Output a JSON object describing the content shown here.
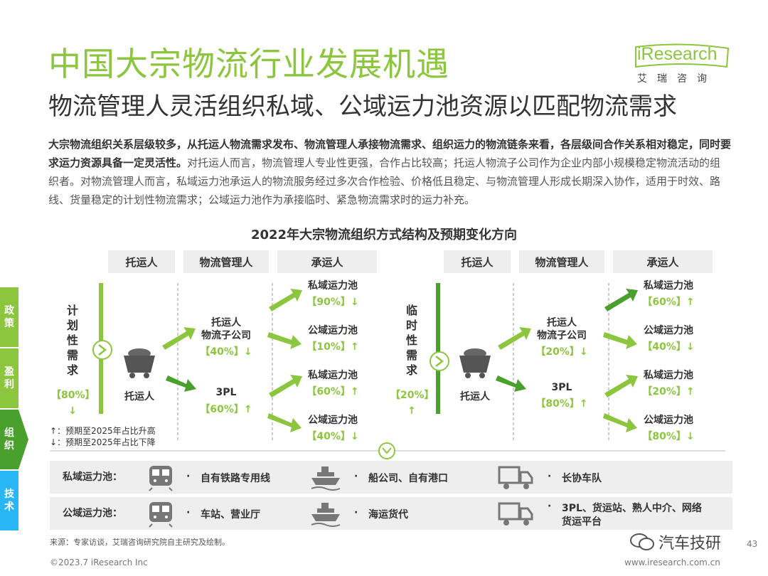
{
  "title": "中国大宗物流行业发展机遇",
  "subtitle": "物流管理人灵活组织私域、公域运力池资源以匹配物流需求",
  "logo": {
    "en": "iResearch",
    "cn": "艾瑞咨询"
  },
  "intro": {
    "bold": "大宗物流组织关系层级较多，从托运人物流需求发布、物流管理人承接物流需求、组织运力的物流链条来看，各层级间合作关系相对稳定，同时要求运力资源具备一定灵活性。",
    "normal": "对托运人而言，物流管理人专业性更强，合作占比较高；托运人物流子公司作为企业内部小规模稳定物流活动的组织者。对物流管理人而言，私域运力池承运人的物流服务经过多次合作检验、价格低且稳定、与物流管理人形成长期深入协作，适用于时效、路线、货量稳定的计划性物流需求；公域运力池作为承接临时、紧急物流需求时的运力补充。"
  },
  "chart_title": "2022年大宗物流组织方式结构及预期变化方向",
  "columns": [
    "托运人",
    "物流管理人",
    "承运人"
  ],
  "left": {
    "demand": [
      "计",
      "划",
      "性",
      "需",
      "求"
    ],
    "demand_pct": "【80%】",
    "demand_arrow": "↓",
    "shipper": "托运人",
    "mid1_line1": "托运人",
    "mid1_line2": "物流子公司",
    "mid1_pct": "【40%】↓",
    "mid2": "3PL",
    "mid2_pct": "【60%】↑",
    "c1": "私域运力池",
    "c1_pct": "【90%】↓",
    "c2": "公域运力池",
    "c2_pct": "【10%】↑",
    "c3": "私域运力池",
    "c3_pct": "【60%】↑",
    "c4": "公域运力池",
    "c4_pct": "【40%】↓"
  },
  "right": {
    "demand": [
      "临",
      "时",
      "性",
      "需",
      "求"
    ],
    "demand_pct": "【20%】",
    "demand_arrow": "↑",
    "shipper": "托运人",
    "mid1_line1": "托运人",
    "mid1_line2": "物流子公司",
    "mid1_pct": "【20%】↓",
    "mid2": "3PL",
    "mid2_pct": "【80%】↑",
    "c1": "私域运力池",
    "c1_pct": "【60%】↑",
    "c2": "公域运力池",
    "c2_pct": "【40%】↓",
    "c3": "私域运力池",
    "c3_pct": "【20%】↑",
    "c4": "公域运力池",
    "c4_pct": "【80%】↓"
  },
  "legend": [
    "↑：预期至2025年占比升高",
    "↓：预期至2025年占比下降"
  ],
  "bands": [
    {
      "label": "私域运力池：",
      "rail": "自有铁路专用线",
      "ship": "船公司、自有港口",
      "truck": "长协车队"
    },
    {
      "label": "公域运力池：",
      "rail": "车站、营业厅",
      "ship": "海运货代",
      "truck_l1": "3PL、货运站、熟人中介、网络",
      "truck_l2": "货运平台"
    }
  ],
  "bullet": "·",
  "side_tabs": [
    "政策",
    "盈利",
    "组织",
    "技术"
  ],
  "source": "来源：专家访谈，艾瑞咨询研究院自主研究及绘制。",
  "footer_left": "©2023.7 iResearch Inc",
  "footer_right": "www.iresearch.com.cn",
  "page_number": "43",
  "watermark": "汽车技研",
  "colors": {
    "accent": "#8cc63f",
    "dark_green": "#4aa02c",
    "side_active": "#4aa02c"
  }
}
